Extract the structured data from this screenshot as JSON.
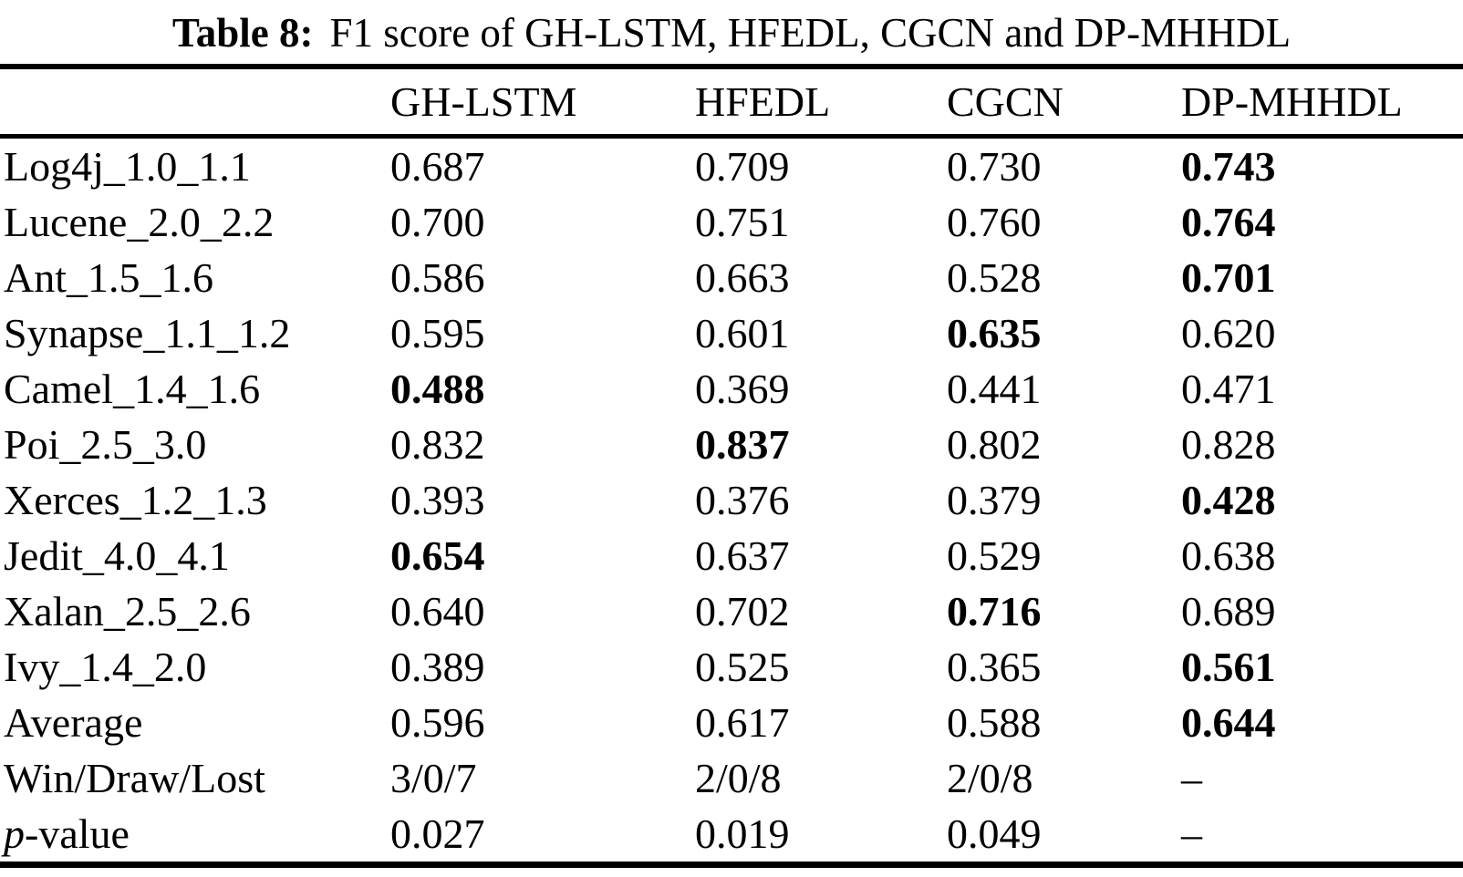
{
  "caption": {
    "label": "Table 8:",
    "text": "F1 score of GH-LSTM, HFEDL, CGCN and DP-MHHDL"
  },
  "table": {
    "columns": [
      "",
      "GH-LSTM",
      "HFEDL",
      "CGCN",
      "DP-MHHDL"
    ],
    "rows": [
      {
        "label": "Log4j_1.0_1.1",
        "values": [
          "0.687",
          "0.709",
          "0.730",
          "0.743"
        ],
        "bold": [
          false,
          false,
          false,
          true
        ]
      },
      {
        "label": "Lucene_2.0_2.2",
        "values": [
          "0.700",
          "0.751",
          "0.760",
          "0.764"
        ],
        "bold": [
          false,
          false,
          false,
          true
        ]
      },
      {
        "label": "Ant_1.5_1.6",
        "values": [
          "0.586",
          "0.663",
          "0.528",
          "0.701"
        ],
        "bold": [
          false,
          false,
          false,
          true
        ]
      },
      {
        "label": "Synapse_1.1_1.2",
        "values": [
          "0.595",
          "0.601",
          "0.635",
          "0.620"
        ],
        "bold": [
          false,
          false,
          true,
          false
        ]
      },
      {
        "label": "Camel_1.4_1.6",
        "values": [
          "0.488",
          "0.369",
          "0.441",
          "0.471"
        ],
        "bold": [
          true,
          false,
          false,
          false
        ]
      },
      {
        "label": "Poi_2.5_3.0",
        "values": [
          "0.832",
          "0.837",
          "0.802",
          "0.828"
        ],
        "bold": [
          false,
          true,
          false,
          false
        ]
      },
      {
        "label": "Xerces_1.2_1.3",
        "values": [
          "0.393",
          "0.376",
          "0.379",
          "0.428"
        ],
        "bold": [
          false,
          false,
          false,
          true
        ]
      },
      {
        "label": "Jedit_4.0_4.1",
        "values": [
          "0.654",
          "0.637",
          "0.529",
          "0.638"
        ],
        "bold": [
          true,
          false,
          false,
          false
        ]
      },
      {
        "label": "Xalan_2.5_2.6",
        "values": [
          "0.640",
          "0.702",
          "0.716",
          "0.689"
        ],
        "bold": [
          false,
          false,
          true,
          false
        ]
      },
      {
        "label": "Ivy_1.4_2.0",
        "values": [
          "0.389",
          "0.525",
          "0.365",
          "0.561"
        ],
        "bold": [
          false,
          false,
          false,
          true
        ]
      },
      {
        "label": "Average",
        "values": [
          "0.596",
          "0.617",
          "0.588",
          "0.644"
        ],
        "bold": [
          false,
          false,
          false,
          true
        ]
      },
      {
        "label": "Win/Draw/Lost",
        "values": [
          "3/0/7",
          "2/0/8",
          "2/0/8",
          "–"
        ],
        "bold": [
          false,
          false,
          false,
          false
        ]
      },
      {
        "label_em": "p",
        "label_rest": "-value",
        "values": [
          "0.027",
          "0.019",
          "0.049",
          "–"
        ],
        "bold": [
          false,
          false,
          false,
          false
        ]
      }
    ]
  }
}
